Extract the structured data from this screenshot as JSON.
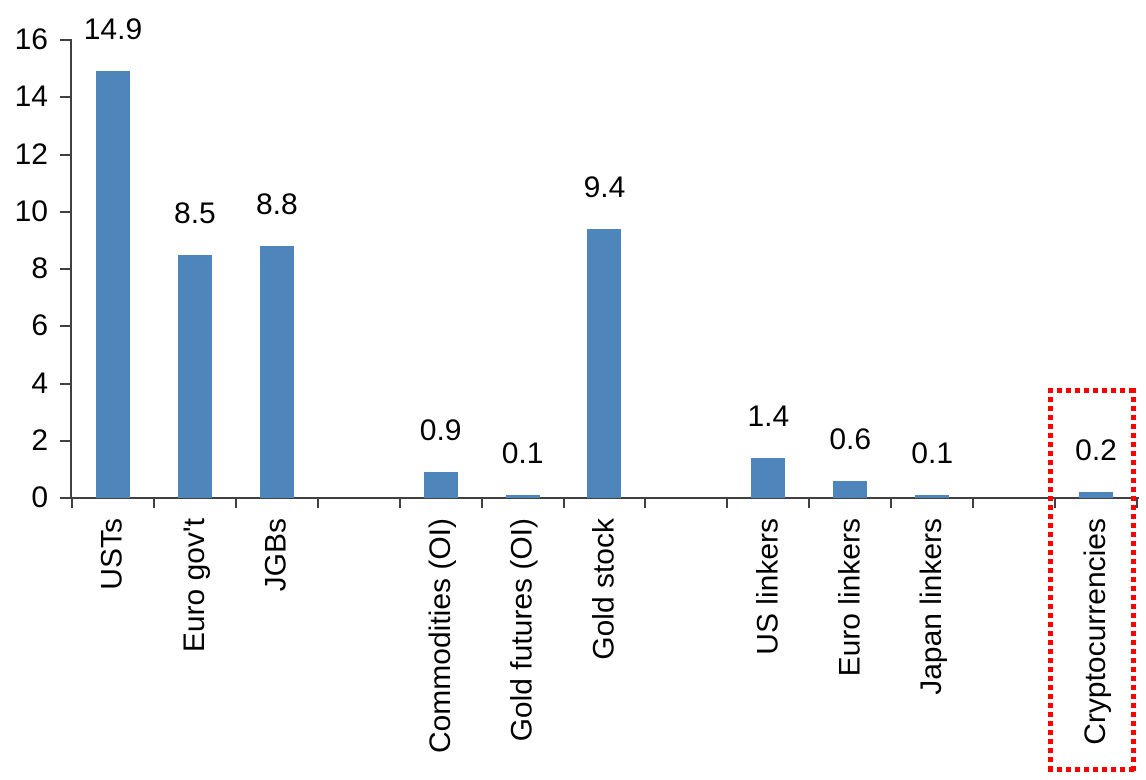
{
  "chart_data": {
    "type": "bar",
    "title": "",
    "xlabel": "",
    "ylabel": "",
    "categories": [
      "USTs",
      "Euro gov't",
      "JGBs",
      "",
      "Commodities (OI)",
      "Gold futures (OI)",
      "Gold stock",
      "",
      "US linkers",
      "Euro linkers",
      "Japan linkers",
      "",
      "Cryptocurrencies"
    ],
    "values": [
      14.9,
      8.5,
      8.8,
      null,
      0.9,
      0.1,
      9.4,
      null,
      1.4,
      0.6,
      0.1,
      null,
      0.2
    ],
    "value_labels": [
      "14.9",
      "8.5",
      "8.8",
      null,
      "0.9",
      "0.1",
      "9.4",
      null,
      "1.4",
      "0.6",
      "0.1",
      null,
      "0.2"
    ],
    "yticks": [
      0,
      2,
      4,
      6,
      8,
      10,
      12,
      14,
      16
    ],
    "ylim": [
      0,
      16
    ],
    "grid": false,
    "legend": "none",
    "colors": {
      "bar": "#4E86BC",
      "axis": "#404040",
      "text": "#000000",
      "highlight": "#FF0000"
    },
    "highlight_box": {
      "category": "Cryptocurrencies",
      "border_style": "square-dotted"
    }
  }
}
